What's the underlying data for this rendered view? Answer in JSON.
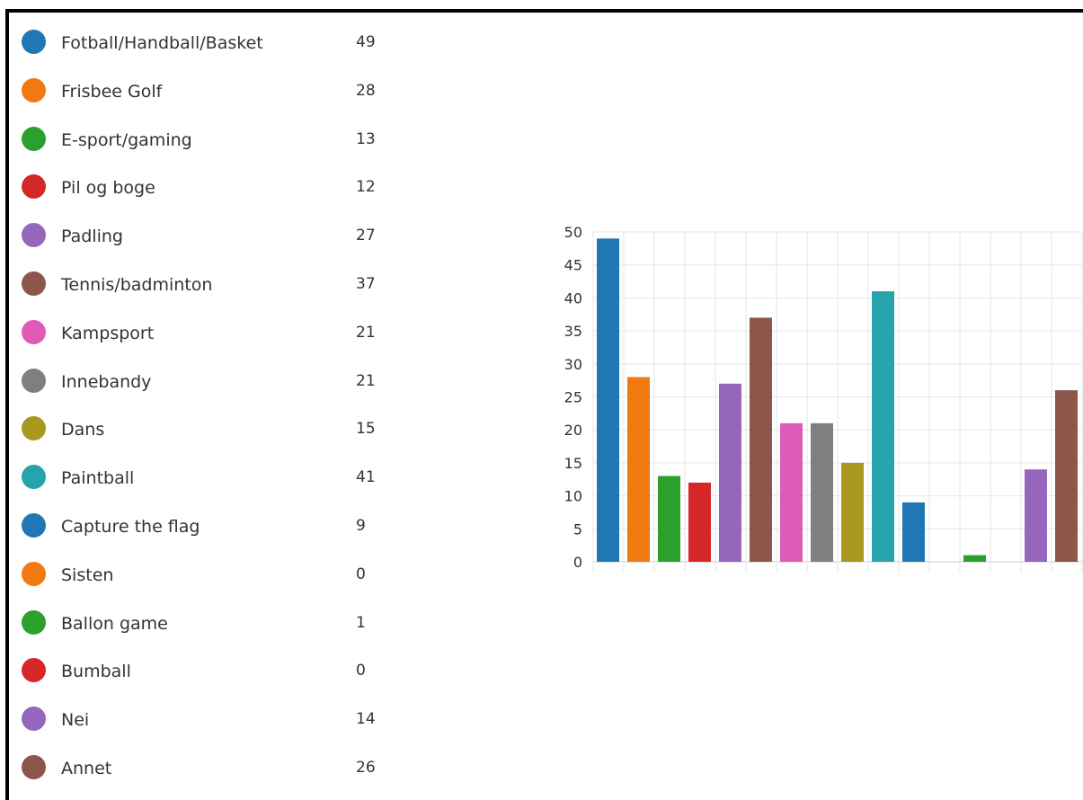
{
  "chart_data": {
    "type": "bar",
    "categories": [
      "Fotball/Handball/Basket",
      "Frisbee Golf",
      "E-sport/gaming",
      "Pil og boge",
      "Padling",
      "Tennis/badminton",
      "Kampsport",
      "Innebandy",
      "Dans",
      "Paintball",
      "Capture the flag",
      "Sisten",
      "Ballon game",
      "Bumball",
      "Nei",
      "Annet"
    ],
    "values": [
      49,
      28,
      13,
      12,
      27,
      37,
      21,
      21,
      15,
      41,
      9,
      0,
      1,
      0,
      14,
      26
    ],
    "colors": [
      "#1f77b4",
      "#f07a10",
      "#2ca02c",
      "#d62728",
      "#9467bd",
      "#8c564b",
      "#e05bb8",
      "#7f7f7f",
      "#a8991e",
      "#26a3ab",
      "#1f77b4",
      "#f07a10",
      "#2ca02c",
      "#d62728",
      "#9467bd",
      "#8c564b"
    ],
    "ylim": [
      0,
      50
    ],
    "yticks": [
      0,
      5,
      10,
      15,
      20,
      25,
      30,
      35,
      40,
      45,
      50
    ],
    "grid": true,
    "legend_placement": "left"
  }
}
